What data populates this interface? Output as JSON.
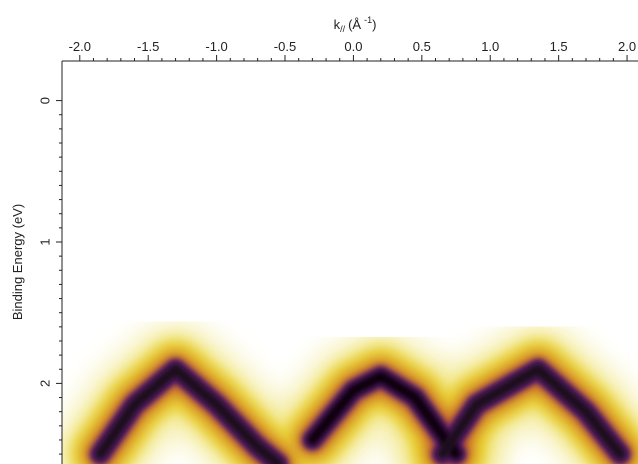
{
  "chart_data": {
    "type": "image",
    "x_label": {
      "base": "k",
      "sub": "//",
      "open": "(Å",
      "sup": "-1",
      "close": ")"
    },
    "y_label": "Binding Energy (eV)",
    "xlim": [
      -2.13,
      2.08
    ],
    "xticks": [
      {
        "value": -2,
        "label": "-2.0"
      },
      -1.5,
      {
        "value": -1,
        "label": "-1.0"
      },
      -0.5,
      {
        "value": 0,
        "label": "0.0"
      },
      0.5,
      {
        "value": 1,
        "label": "1.0"
      },
      1.5,
      {
        "value": 2,
        "label": "2.0"
      }
    ],
    "ylim": [
      -0.28,
      2.57
    ],
    "yticks": [
      0,
      1,
      2
    ],
    "y_reversed": true,
    "bands": [
      {
        "color": "#1a0a1e",
        "x": [
          -1.85,
          -1.6,
          -1.3,
          -1.0,
          -0.7,
          -0.55
        ],
        "values": [
          2.5,
          2.15,
          1.9,
          2.15,
          2.45,
          2.57
        ]
      },
      {
        "color": "#0d0510",
        "x": [
          -0.3,
          0.0,
          0.2,
          0.45,
          0.75
        ],
        "values": [
          2.4,
          2.05,
          1.95,
          2.1,
          2.5
        ]
      },
      {
        "color": "#1a0a1e",
        "x": [
          0.65,
          0.9,
          1.35,
          1.7,
          1.95
        ],
        "values": [
          2.5,
          2.15,
          1.9,
          2.2,
          2.5
        ]
      }
    ]
  }
}
